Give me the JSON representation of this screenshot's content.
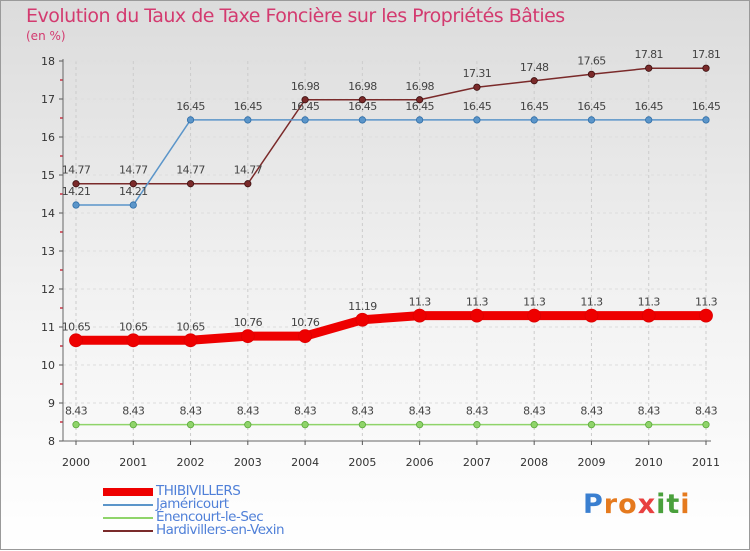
{
  "chart_data": {
    "type": "line",
    "title": "Evolution du Taux de Taxe Foncière sur les Propriétés Bâties",
    "ylabel": "(en %)",
    "xlabel": "",
    "x": [
      "2000",
      "2001",
      "2002",
      "2003",
      "2004",
      "2005",
      "2006",
      "2007",
      "2008",
      "2009",
      "2010",
      "2011"
    ],
    "ylim": [
      8,
      18
    ],
    "yticks": [
      "8",
      "9",
      "10",
      "11",
      "12",
      "13",
      "14",
      "15",
      "16",
      "17",
      "18"
    ],
    "series": [
      {
        "name": "THIBIVILLERS",
        "color": "#ee0000",
        "width": 9,
        "values": [
          10.65,
          10.65,
          10.65,
          10.76,
          10.76,
          11.19,
          11.3,
          11.3,
          11.3,
          11.3,
          11.3,
          11.3
        ],
        "labels": [
          "10.65",
          "10.65",
          "10.65",
          "10.76",
          "10.76",
          "11.19",
          "11.3",
          "11.3",
          "11.3",
          "11.3",
          "11.3",
          "11.3"
        ]
      },
      {
        "name": "Jaméricourt",
        "color": "#5b95c9",
        "width": 1.5,
        "values": [
          14.21,
          14.21,
          16.45,
          16.45,
          16.45,
          16.45,
          16.45,
          16.45,
          16.45,
          16.45,
          16.45,
          16.45
        ],
        "labels": [
          "14.21",
          "14.21",
          "16.45",
          "16.45",
          "16.45",
          "16.45",
          "16.45",
          "16.45",
          "16.45",
          "16.45",
          "16.45",
          "16.45"
        ]
      },
      {
        "name": "Énencourt-le-Sec",
        "color": "#8fd46a",
        "width": 1.5,
        "values": [
          8.43,
          8.43,
          8.43,
          8.43,
          8.43,
          8.43,
          8.43,
          8.43,
          8.43,
          8.43,
          8.43,
          8.43
        ],
        "labels": [
          "8.43",
          "8.43",
          "8.43",
          "8.43",
          "8.43",
          "8.43",
          "8.43",
          "8.43",
          "8.43",
          "8.43",
          "8.43",
          "8.43"
        ]
      },
      {
        "name": "Hardivillers-en-Vexin",
        "color": "#7a2a2a",
        "width": 1.5,
        "values": [
          14.77,
          14.77,
          14.77,
          14.77,
          16.98,
          16.98,
          16.98,
          17.31,
          17.48,
          17.65,
          17.81,
          17.81
        ],
        "labels": [
          "14.77",
          "14.77",
          "14.77",
          "14.77",
          "16.98",
          "16.98",
          "16.98",
          "17.31",
          "17.48",
          "17.65",
          "17.81",
          "17.81"
        ]
      }
    ],
    "legend_position": "bottom-left"
  },
  "logo": {
    "text": "Proxiti",
    "letters": [
      "P",
      "r",
      "o",
      "x",
      "i",
      "t",
      "i"
    ],
    "colors": [
      "#3a7fd0",
      "#e57a1e",
      "#e57a1e",
      "#e84040",
      "#4aa03c",
      "#4aa03c",
      "#e57a1e"
    ]
  }
}
